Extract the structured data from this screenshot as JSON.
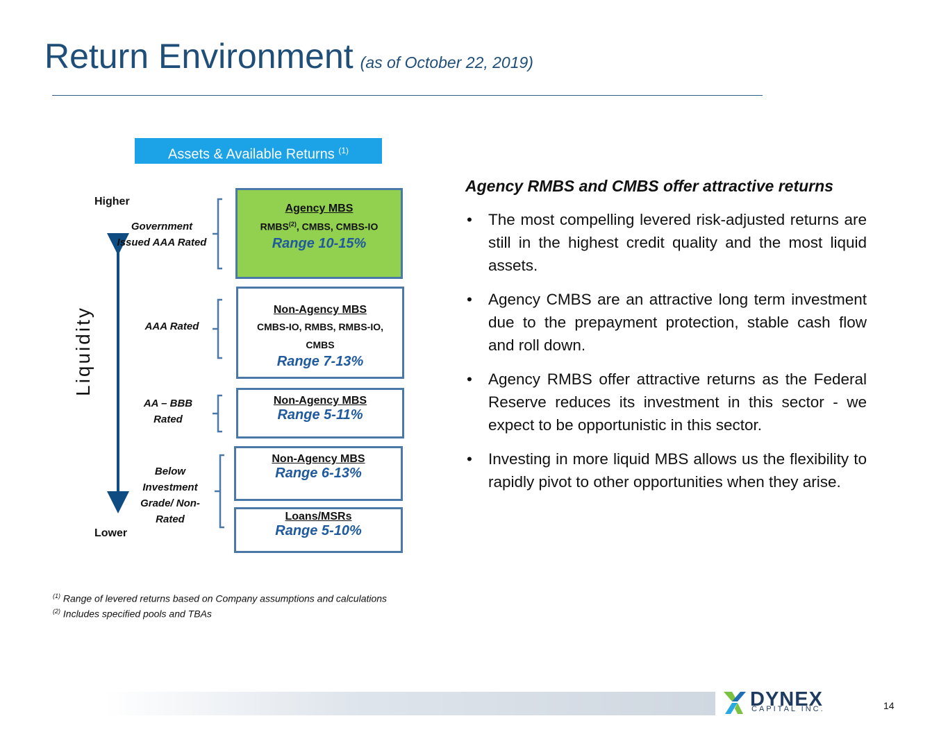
{
  "title": "Return Environment",
  "title_note": "(as of October 22, 2019)",
  "assets_header": {
    "label": "Assets & Available Returns",
    "note": "(1)"
  },
  "scale": {
    "top": "Higher",
    "bottom": "Lower",
    "axis_label": "Liquidity"
  },
  "categories": [
    {
      "id": "gov",
      "text": "Government Issued AAA Rated"
    },
    {
      "id": "aaa",
      "text": "AAA Rated"
    },
    {
      "id": "aa",
      "text": "AA – BBB Rated"
    },
    {
      "id": "below",
      "text": "Below Investment Grade/ Non-Rated"
    }
  ],
  "boxes": {
    "agency": {
      "name": "Agency MBS",
      "desc_pre": "RMBS",
      "desc_sup": "(2)",
      "desc_post": ", CMBS, CMBS-IO",
      "range": "Range 10-15%"
    },
    "nonagency_aaa": {
      "name": "Non-Agency MBS",
      "desc": "CMBS-IO, RMBS, RMBS-IO, CMBS",
      "range": "Range 7-13%"
    },
    "nonagency_bbb": {
      "name": "Non-Agency MBS",
      "range": "Range 5-11%"
    },
    "nonagency_below": {
      "name": "Non-Agency MBS",
      "range": "Range 6-13%"
    },
    "loans": {
      "name": "Loans/MSRs",
      "range": "Range 5-10%"
    }
  },
  "heading": "Agency RMBS and CMBS offer attractive returns",
  "bullets": [
    "The most compelling levered risk-adjusted returns are still in the highest credit quality and the most liquid assets.",
    "Agency CMBS are an attractive long term investment due to the prepayment protection, stable cash flow and  roll down.",
    "Agency RMBS offer attractive returns as the Federal Reserve reduces its investment in this sector - we expect to be opportunistic in this sector.",
    "Investing in more liquid MBS allows us the flexibility to rapidly pivot to other opportunities when they arise."
  ],
  "footnotes": [
    {
      "mark": "(1)",
      "text": "Range of levered returns based on Company assumptions and calculations"
    },
    {
      "mark": "(2)",
      "text": "Includes specified pools and TBAs"
    }
  ],
  "logo": {
    "name": "DYNEX",
    "sub": "CAPITAL INC."
  },
  "page_number": "14",
  "colors": {
    "title": "#1f4e79",
    "header_box": "#1ca2e7",
    "agency_box": "#92d14f",
    "range_text": "#1f5a9e",
    "border": "#4a78a8",
    "arrow": "#0f4c81"
  }
}
